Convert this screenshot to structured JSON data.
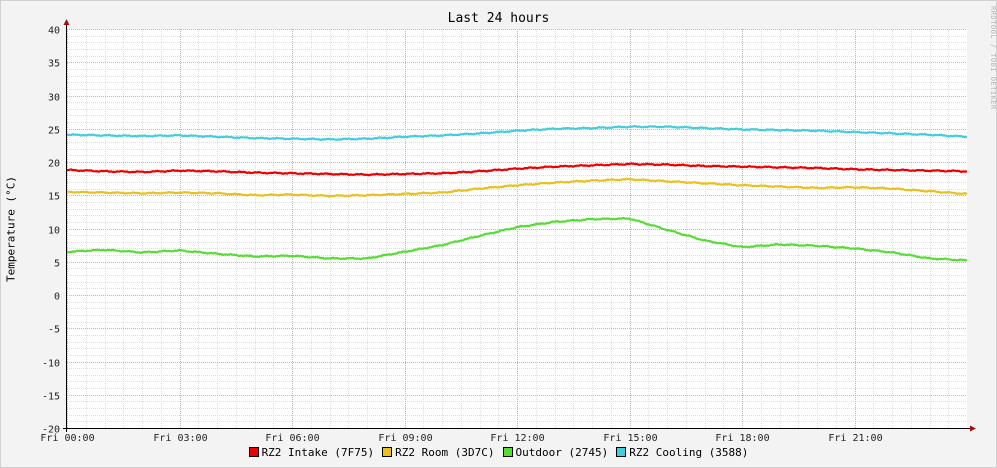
{
  "chart_data": {
    "type": "line",
    "title": "Last 24 hours",
    "watermark": "RRDTOOL / TOBI OETIKER",
    "ylabel": "Temperature (°C)",
    "ylim": [
      -20,
      40
    ],
    "yticks": [
      -20,
      -15,
      -10,
      -5,
      0,
      5,
      10,
      15,
      20,
      25,
      30,
      35,
      40
    ],
    "xlim": [
      0,
      24
    ],
    "xticks": [
      0,
      3,
      6,
      9,
      12,
      15,
      18,
      21
    ],
    "xtick_labels": [
      "Fri 00:00",
      "Fri 03:00",
      "Fri 06:00",
      "Fri 09:00",
      "Fri 12:00",
      "Fri 15:00",
      "Fri 18:00",
      "Fri 21:00"
    ],
    "grid": true,
    "legend_position": "bottom",
    "series": [
      {
        "name": "RZ2 Intake (7F75)",
        "color": "#ee0000",
        "x": [
          0,
          1,
          2,
          3,
          4,
          5,
          6,
          7,
          8,
          9,
          10,
          11,
          12,
          13,
          14,
          15,
          16,
          17,
          18,
          19,
          20,
          21,
          22,
          23,
          24
        ],
        "y": [
          18.8,
          18.6,
          18.5,
          18.7,
          18.6,
          18.4,
          18.3,
          18.2,
          18.1,
          18.2,
          18.3,
          18.6,
          19.0,
          19.3,
          19.5,
          19.7,
          19.6,
          19.4,
          19.3,
          19.2,
          19.1,
          18.9,
          18.8,
          18.7,
          18.6
        ]
      },
      {
        "name": "RZ2 Room (3D7C)",
        "color": "#e8c020",
        "x": [
          0,
          1,
          2,
          3,
          4,
          5,
          6,
          7,
          8,
          9,
          10,
          11,
          12,
          13,
          14,
          15,
          16,
          17,
          18,
          19,
          20,
          21,
          22,
          23,
          24
        ],
        "y": [
          15.5,
          15.4,
          15.3,
          15.4,
          15.3,
          15.0,
          15.1,
          14.9,
          15.0,
          15.2,
          15.4,
          16.0,
          16.5,
          16.9,
          17.2,
          17.4,
          17.1,
          16.8,
          16.5,
          16.3,
          16.1,
          16.2,
          16.0,
          15.6,
          15.2
        ]
      },
      {
        "name": "Outdoor (2745)",
        "color": "#55dd33",
        "x": [
          0,
          1,
          2,
          3,
          4,
          5,
          6,
          7,
          8,
          9,
          10,
          11,
          12,
          13,
          14,
          15,
          16,
          17,
          18,
          19,
          20,
          21,
          22,
          23,
          24
        ],
        "y": [
          6.5,
          6.8,
          6.4,
          6.7,
          6.2,
          5.8,
          5.9,
          5.5,
          5.5,
          6.5,
          7.5,
          8.9,
          10.2,
          11.0,
          11.4,
          11.5,
          9.8,
          8.2,
          7.2,
          7.6,
          7.4,
          7.0,
          6.4,
          5.5,
          5.2
        ]
      },
      {
        "name": "RZ2 Cooling (3588)",
        "color": "#44ccdd",
        "x": [
          0,
          1,
          2,
          3,
          4,
          5,
          6,
          7,
          8,
          9,
          10,
          11,
          12,
          13,
          14,
          15,
          16,
          17,
          18,
          19,
          20,
          21,
          22,
          23,
          24
        ],
        "y": [
          24.1,
          24.0,
          23.9,
          24.0,
          23.8,
          23.6,
          23.5,
          23.4,
          23.5,
          23.8,
          24.0,
          24.3,
          24.7,
          25.0,
          25.1,
          25.3,
          25.3,
          25.1,
          24.9,
          24.8,
          24.7,
          24.5,
          24.3,
          24.1,
          23.8
        ]
      }
    ]
  }
}
